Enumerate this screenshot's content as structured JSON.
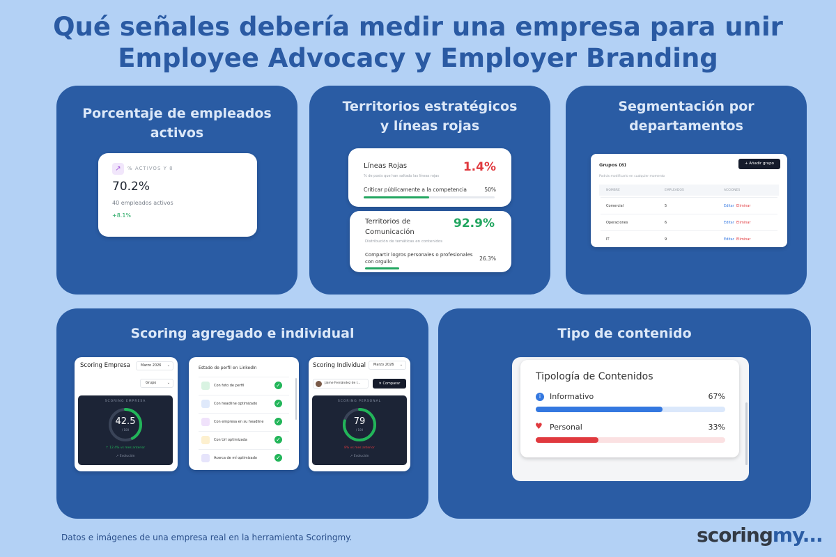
{
  "title_line1": "Qué señales debería medir una empresa para unir",
  "title_line2": "Employee Advocacy y Employer Branding",
  "panel1": {
    "title": "Porcentaje de empleados activos",
    "label": "% ACTIVOS Y 8",
    "value": "70.2%",
    "sub": "40 empleados activos",
    "delta": "+8.1%"
  },
  "panel2": {
    "title": "Territorios estratégicos y líneas rojas",
    "card1": {
      "heading": "Líneas Rojas",
      "value": "1.4%",
      "desc": "% de posts que han saltado las líneas rojas",
      "item": "Criticar públicamente a la competencia",
      "item_pct": "50%",
      "item_fill": 0.5
    },
    "card2": {
      "heading": "Territorios de Comunicación",
      "value": "92.9%",
      "desc": "Distribución de temáticas en contenidos",
      "item": "Compartir logros personales o profesionales con orgullo",
      "item_pct": "26.3%",
      "item_fill": 0.263
    }
  },
  "panel3": {
    "title": "Segmentación por departamentos",
    "groups_label": "Grupos (6)",
    "add_button": "+ Añadir grupo",
    "hint": "Podrás modificarlo en cualquier momento",
    "headers": [
      "NOMBRE",
      "EMPLEADOS",
      "ACCIONES"
    ],
    "rows": [
      {
        "name": "Comercial",
        "count": "5"
      },
      {
        "name": "Operaciones",
        "count": "6"
      },
      {
        "name": "IT",
        "count": "9"
      }
    ],
    "edit": "Editar",
    "delete": "Eliminar"
  },
  "panel4": {
    "title": "Scoring agregado e individual",
    "empresa": {
      "title": "Scoring Empresa",
      "month": "Marzo 2026",
      "group": "Grupo",
      "label": "SCORING EMPRESA",
      "score": "42.5",
      "max": "/ 100",
      "delta": "↑ 12.4% vs mes anterior",
      "link": "↗ Evolución",
      "fill": 0.425
    },
    "profile": {
      "title": "Estado de perfil en LinkedIn",
      "items": [
        "Con foto de perfil",
        "Con headline optimizado",
        "Con empresa en su headline",
        "Con Url optimizada",
        "Acerca de mí optimizado"
      ]
    },
    "individual": {
      "title": "Scoring Individual",
      "month": "Marzo 2026",
      "person": "Jaime Fernández de l...",
      "compare": "Comparar",
      "label": "SCORING PERSONAL",
      "score": "79",
      "max": "/ 100",
      "delta": "8% vs mes anterior",
      "link": "↗ Evolución",
      "fill": 0.79
    }
  },
  "panel5": {
    "title": "Tipo de contenido",
    "card_title": "Tipología de Contenidos",
    "items": [
      {
        "label": "Informativo",
        "pct": "67%",
        "fill": 0.67
      },
      {
        "label": "Personal",
        "pct": "33%",
        "fill": 0.33
      }
    ]
  },
  "footer": "Datos e imágenes de una empresa real en la herramienta Scoringmy.",
  "logo_main": "scoring",
  "logo_accent": "my..."
}
